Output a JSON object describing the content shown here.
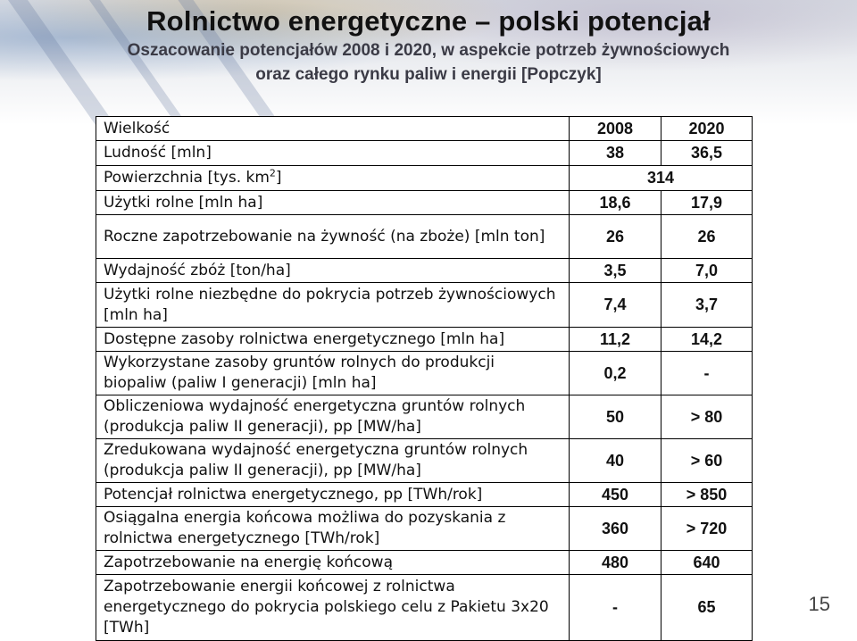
{
  "slide": {
    "title": "Rolnictwo energetyczne – polski potencjał",
    "subtitle_line1": "Oszacowanie potencjałów 2008 i 2020, w aspekcie potrzeb żywnościowych",
    "subtitle_line2": "oraz całego rynku paliw i energii [Popczyk]",
    "page_number": "15"
  },
  "table": {
    "header": {
      "label": "Wielkość",
      "col1": "2008",
      "col2": "2020"
    },
    "area_row": {
      "label_pre": "Powierzchnia [tys. km",
      "label_sup": "2",
      "label_post": "]",
      "value": "314"
    },
    "rows": [
      {
        "label": "Ludność [mln]",
        "v2008": "38",
        "v2020": "36,5"
      },
      {
        "label": "Użytki rolne [mln ha]",
        "v2008": "18,6",
        "v2020": "17,9"
      },
      {
        "label": "Roczne zapotrzebowanie na żywność (na zboże) [mln ton]",
        "v2008": "26",
        "v2020": "26"
      },
      {
        "label": "Wydajność zbóż [ton/ha]",
        "v2008": "3,5",
        "v2020": "7,0"
      },
      {
        "label": "Użytki rolne niezbędne do pokrycia potrzeb żywnościowych [mln ha]",
        "v2008": "7,4",
        "v2020": "3,7"
      },
      {
        "label": "Dostępne zasoby rolnictwa energetycznego [mln ha]",
        "v2008": "11,2",
        "v2020": "14,2"
      },
      {
        "label": "Wykorzystane zasoby gruntów rolnych do produkcji biopaliw (paliw I generacji) [mln ha]",
        "v2008": "0,2",
        "v2020": "-"
      },
      {
        "label": "Obliczeniowa wydajność energetyczna gruntów rolnych (produkcja paliw II generacji), pp [MW/ha]",
        "v2008": "50",
        "v2020": "> 80"
      },
      {
        "label": "Zredukowana wydajność energetyczna gruntów rolnych (produkcja paliw II generacji), pp [MW/ha]",
        "v2008": "40",
        "v2020": "> 60"
      },
      {
        "label": "Potencjał rolnictwa energetycznego, pp [TWh/rok]",
        "v2008": "450",
        "v2020": "> 850"
      },
      {
        "label": "Osiągalna energia końcowa możliwa do pozyskania z rolnictwa energetycznego [TWh/rok]",
        "v2008": "360",
        "v2020": "> 720"
      },
      {
        "label": "Zapotrzebowanie na energię końcową",
        "v2008": "480",
        "v2020": "640"
      },
      {
        "label": "Zapotrzebowanie energii końcowej z rolnictwa energetycznego do pokrycia polskiego celu z Pakietu 3x20 [TWh]",
        "v2008": "-",
        "v2020": "65"
      }
    ]
  }
}
